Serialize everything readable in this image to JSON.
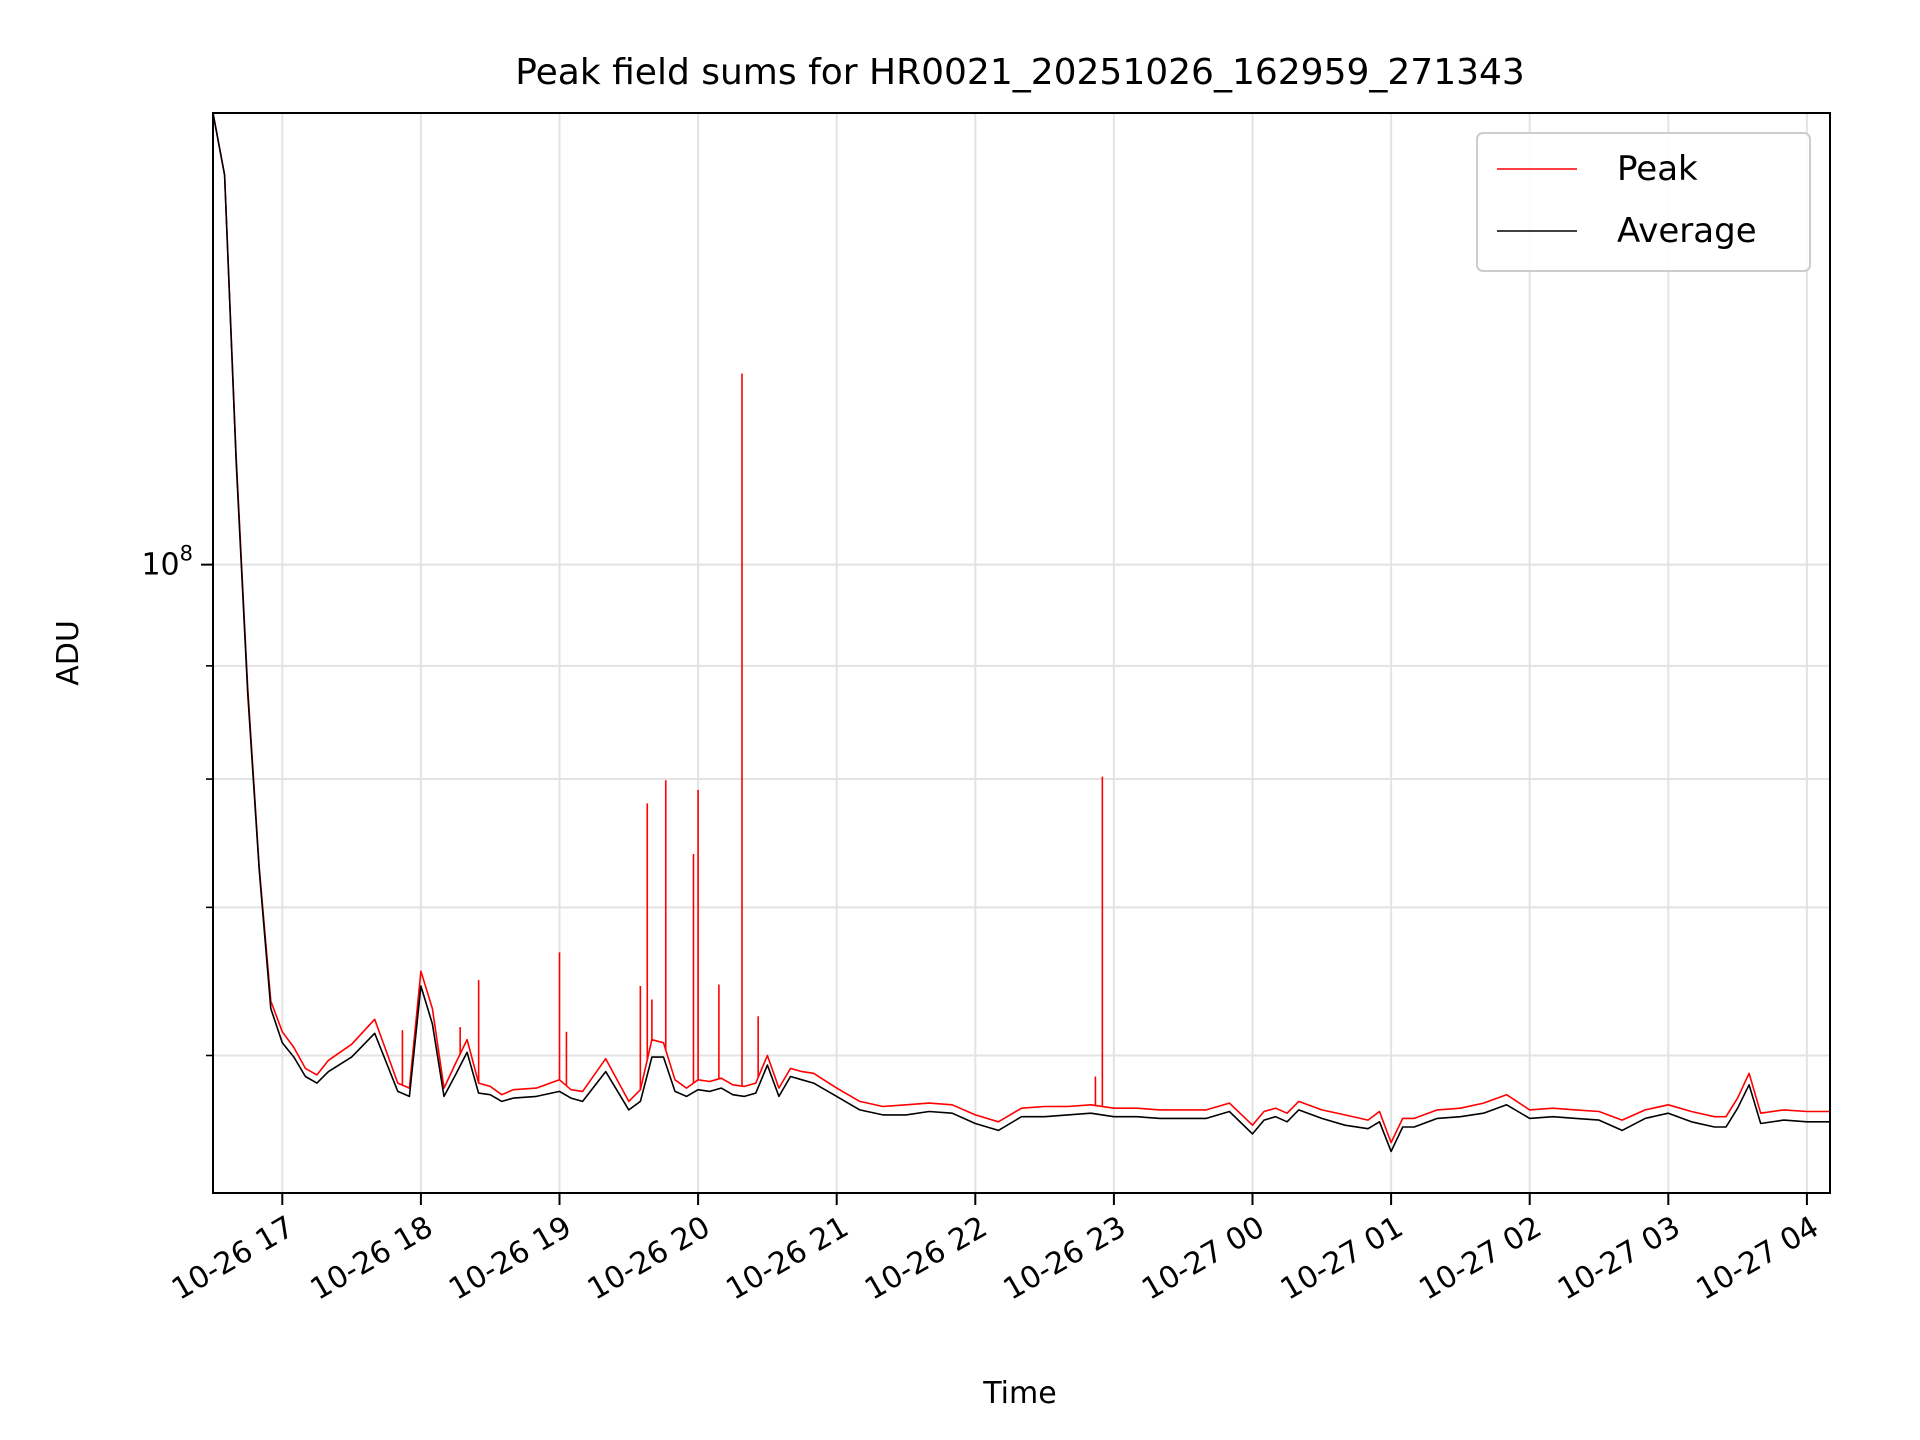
{
  "chart_data": {
    "type": "line",
    "title": "Peak field sums for HR0021_20251026_162959_271343",
    "xlabel": "Time",
    "ylabel": "ADU",
    "y_scale": "log",
    "grid": true,
    "legend_position": "top-right",
    "x_ticks": [
      "10-26 17",
      "10-26 18",
      "10-26 19",
      "10-26 20",
      "10-26 21",
      "10-26 22",
      "10-26 23",
      "10-27 00",
      "10-27 01",
      "10-27 02",
      "10-27 03",
      "10-27 04"
    ],
    "x_tick_values": [
      "2025-10-26 17:00",
      "2025-10-26 18:00",
      "2025-10-26 19:00",
      "2025-10-26 20:00",
      "2025-10-26 21:00",
      "2025-10-26 22:00",
      "2025-10-26 23:00",
      "2025-10-27 00:00",
      "2025-10-27 01:00",
      "2025-10-27 02:00",
      "2025-10-27 03:00",
      "2025-10-27 04:00"
    ],
    "xlim": [
      "2025-10-26 16:30",
      "2025-10-27 04:10"
    ],
    "ylim": [
      52000000,
      160000000
    ],
    "y_major_tick": {
      "label_base": "10",
      "label_exp": "8",
      "value": 100000000
    },
    "y_minor_ticks": [
      60000000,
      70000000,
      80000000,
      90000000,
      200000000
    ],
    "series": [
      {
        "name": "Peak",
        "color": "#ff0000",
        "x": [
          "2025-10-26 16:30",
          "2025-10-26 16:35",
          "2025-10-26 16:40",
          "2025-10-26 16:45",
          "2025-10-26 16:50",
          "2025-10-26 16:55",
          "2025-10-26 17:00",
          "2025-10-26 17:05",
          "2025-10-26 17:10",
          "2025-10-26 17:15",
          "2025-10-26 17:20",
          "2025-10-26 17:30",
          "2025-10-26 17:40",
          "2025-10-26 17:50",
          "2025-10-26 17:55",
          "2025-10-26 18:00",
          "2025-10-26 18:05",
          "2025-10-26 18:10",
          "2025-10-26 18:15",
          "2025-10-26 18:20",
          "2025-10-26 18:25",
          "2025-10-26 18:30",
          "2025-10-26 18:35",
          "2025-10-26 18:40",
          "2025-10-26 18:50",
          "2025-10-26 19:00",
          "2025-10-26 19:05",
          "2025-10-26 19:10",
          "2025-10-26 19:20",
          "2025-10-26 19:30",
          "2025-10-26 19:35",
          "2025-10-26 19:40",
          "2025-10-26 19:45",
          "2025-10-26 19:50",
          "2025-10-26 19:55",
          "2025-10-26 20:00",
          "2025-10-26 20:05",
          "2025-10-26 20:10",
          "2025-10-26 20:15",
          "2025-10-26 20:20",
          "2025-10-26 20:25",
          "2025-10-26 20:30",
          "2025-10-26 20:35",
          "2025-10-26 20:40",
          "2025-10-26 20:45",
          "2025-10-26 20:50",
          "2025-10-26 21:00",
          "2025-10-26 21:10",
          "2025-10-26 21:20",
          "2025-10-26 21:30",
          "2025-10-26 21:40",
          "2025-10-26 21:50",
          "2025-10-26 22:00",
          "2025-10-26 22:10",
          "2025-10-26 22:20",
          "2025-10-26 22:30",
          "2025-10-26 22:40",
          "2025-10-26 22:50",
          "2025-10-26 23:00",
          "2025-10-26 23:10",
          "2025-10-26 23:20",
          "2025-10-26 23:30",
          "2025-10-26 23:40",
          "2025-10-26 23:50",
          "2025-10-27 00:00",
          "2025-10-27 00:05",
          "2025-10-27 00:10",
          "2025-10-27 00:15",
          "2025-10-27 00:20",
          "2025-10-27 00:30",
          "2025-10-27 00:40",
          "2025-10-27 00:50",
          "2025-10-27 00:55",
          "2025-10-27 01:00",
          "2025-10-27 01:05",
          "2025-10-27 01:10",
          "2025-10-27 01:20",
          "2025-10-27 01:30",
          "2025-10-27 01:40",
          "2025-10-27 01:50",
          "2025-10-27 02:00",
          "2025-10-27 02:10",
          "2025-10-27 02:20",
          "2025-10-27 02:30",
          "2025-10-27 02:40",
          "2025-10-27 02:50",
          "2025-10-27 03:00",
          "2025-10-27 03:10",
          "2025-10-27 03:20",
          "2025-10-27 03:25",
          "2025-10-27 03:30",
          "2025-10-27 03:35",
          "2025-10-27 03:40",
          "2025-10-27 03:50",
          "2025-10-27 04:00",
          "2025-10-27 04:10"
        ],
        "values": [
          165000000,
          150000000,
          112000000,
          88000000,
          73000000,
          63500000,
          61500000,
          60500000,
          59200000,
          58800000,
          59700000,
          60700000,
          62300000,
          58300000,
          58000000,
          65500000,
          63000000,
          58000000,
          59500000,
          61000000,
          58300000,
          58100000,
          57600000,
          57900000,
          58000000,
          58500000,
          57900000,
          57800000,
          59800000,
          57200000,
          57900000,
          61000000,
          60800000,
          58500000,
          58000000,
          58500000,
          58400000,
          58600000,
          58200000,
          58100000,
          58300000,
          60000000,
          58000000,
          59200000,
          59000000,
          58900000,
          58000000,
          57200000,
          56900000,
          57000000,
          57100000,
          57000000,
          56400000,
          56000000,
          56800000,
          56900000,
          56900000,
          57000000,
          56800000,
          56800000,
          56700000,
          56700000,
          56700000,
          57100000,
          55800000,
          56600000,
          56800000,
          56500000,
          57200000,
          56700000,
          56400000,
          56100000,
          56600000,
          54800000,
          56200000,
          56200000,
          56700000,
          56800000,
          57100000,
          57600000,
          56700000,
          56800000,
          56700000,
          56600000,
          56100000,
          56700000,
          57000000,
          56600000,
          56300000,
          56300000,
          57400000,
          58900000,
          56500000,
          56700000,
          56600000,
          56600000
        ],
        "spikes": [
          {
            "x": "2025-10-26 19:00",
            "value": 66800000
          },
          {
            "x": "2025-10-26 19:03",
            "value": 61500000
          },
          {
            "x": "2025-10-26 17:52",
            "value": 61600000
          },
          {
            "x": "2025-10-26 18:25",
            "value": 64900000
          },
          {
            "x": "2025-10-26 18:17",
            "value": 61800000
          },
          {
            "x": "2025-10-26 19:35",
            "value": 64500000
          },
          {
            "x": "2025-10-26 19:38",
            "value": 78000000
          },
          {
            "x": "2025-10-26 19:40",
            "value": 63600000
          },
          {
            "x": "2025-10-26 19:46",
            "value": 79900000
          },
          {
            "x": "2025-10-26 19:58",
            "value": 74000000
          },
          {
            "x": "2025-10-26 20:00",
            "value": 79100000
          },
          {
            "x": "2025-10-26 20:09",
            "value": 64600000
          },
          {
            "x": "2025-10-26 20:19",
            "value": 122000000
          },
          {
            "x": "2025-10-26 20:26",
            "value": 62500000
          },
          {
            "x": "2025-10-26 22:52",
            "value": 58700000
          },
          {
            "x": "2025-10-26 22:55",
            "value": 80200000
          }
        ]
      },
      {
        "name": "Average",
        "color": "#000000",
        "x": [
          "2025-10-26 16:30",
          "2025-10-26 16:35",
          "2025-10-26 16:40",
          "2025-10-26 16:45",
          "2025-10-26 16:50",
          "2025-10-26 16:55",
          "2025-10-26 17:00",
          "2025-10-26 17:05",
          "2025-10-26 17:10",
          "2025-10-26 17:15",
          "2025-10-26 17:20",
          "2025-10-26 17:30",
          "2025-10-26 17:40",
          "2025-10-26 17:50",
          "2025-10-26 17:55",
          "2025-10-26 18:00",
          "2025-10-26 18:05",
          "2025-10-26 18:10",
          "2025-10-26 18:15",
          "2025-10-26 18:20",
          "2025-10-26 18:25",
          "2025-10-26 18:30",
          "2025-10-26 18:35",
          "2025-10-26 18:40",
          "2025-10-26 18:50",
          "2025-10-26 19:00",
          "2025-10-26 19:05",
          "2025-10-26 19:10",
          "2025-10-26 19:20",
          "2025-10-26 19:30",
          "2025-10-26 19:35",
          "2025-10-26 19:40",
          "2025-10-26 19:45",
          "2025-10-26 19:50",
          "2025-10-26 19:55",
          "2025-10-26 20:00",
          "2025-10-26 20:05",
          "2025-10-26 20:10",
          "2025-10-26 20:15",
          "2025-10-26 20:20",
          "2025-10-26 20:25",
          "2025-10-26 20:30",
          "2025-10-26 20:35",
          "2025-10-26 20:40",
          "2025-10-26 20:45",
          "2025-10-26 20:50",
          "2025-10-26 21:00",
          "2025-10-26 21:10",
          "2025-10-26 21:20",
          "2025-10-26 21:30",
          "2025-10-26 21:40",
          "2025-10-26 21:50",
          "2025-10-26 22:00",
          "2025-10-26 22:10",
          "2025-10-26 22:20",
          "2025-10-26 22:30",
          "2025-10-26 22:40",
          "2025-10-26 22:50",
          "2025-10-26 23:00",
          "2025-10-26 23:10",
          "2025-10-26 23:20",
          "2025-10-26 23:30",
          "2025-10-26 23:40",
          "2025-10-26 23:50",
          "2025-10-27 00:00",
          "2025-10-27 00:05",
          "2025-10-27 00:10",
          "2025-10-27 00:15",
          "2025-10-27 00:20",
          "2025-10-27 00:30",
          "2025-10-27 00:40",
          "2025-10-27 00:50",
          "2025-10-27 00:55",
          "2025-10-27 01:00",
          "2025-10-27 01:05",
          "2025-10-27 01:10",
          "2025-10-27 01:20",
          "2025-10-27 01:30",
          "2025-10-27 01:40",
          "2025-10-27 01:50",
          "2025-10-27 02:00",
          "2025-10-27 02:10",
          "2025-10-27 02:20",
          "2025-10-27 02:30",
          "2025-10-27 02:40",
          "2025-10-27 02:50",
          "2025-10-27 03:00",
          "2025-10-27 03:10",
          "2025-10-27 03:20",
          "2025-10-27 03:25",
          "2025-10-27 03:30",
          "2025-10-27 03:35",
          "2025-10-27 03:40",
          "2025-10-27 03:50",
          "2025-10-27 04:00",
          "2025-10-27 04:10"
        ],
        "values": [
          165000000,
          150000000,
          111500000,
          87500000,
          72800000,
          63000000,
          60800000,
          59900000,
          58700000,
          58300000,
          59000000,
          59900000,
          61400000,
          57800000,
          57500000,
          64500000,
          62000000,
          57500000,
          58800000,
          60200000,
          57700000,
          57600000,
          57200000,
          57400000,
          57500000,
          57800000,
          57400000,
          57200000,
          59000000,
          56700000,
          57200000,
          59900000,
          59900000,
          57800000,
          57500000,
          57900000,
          57800000,
          58000000,
          57600000,
          57500000,
          57700000,
          59400000,
          57500000,
          58700000,
          58500000,
          58300000,
          57500000,
          56700000,
          56400000,
          56400000,
          56600000,
          56500000,
          55900000,
          55500000,
          56300000,
          56300000,
          56400000,
          56500000,
          56300000,
          56300000,
          56200000,
          56200000,
          56200000,
          56600000,
          55300000,
          56100000,
          56300000,
          56000000,
          56700000,
          56200000,
          55800000,
          55600000,
          56000000,
          54300000,
          55700000,
          55700000,
          56200000,
          56300000,
          56500000,
          57000000,
          56200000,
          56300000,
          56200000,
          56100000,
          55500000,
          56200000,
          56500000,
          56000000,
          55700000,
          55700000,
          56800000,
          58200000,
          55900000,
          56100000,
          56000000,
          56000000
        ]
      }
    ]
  }
}
